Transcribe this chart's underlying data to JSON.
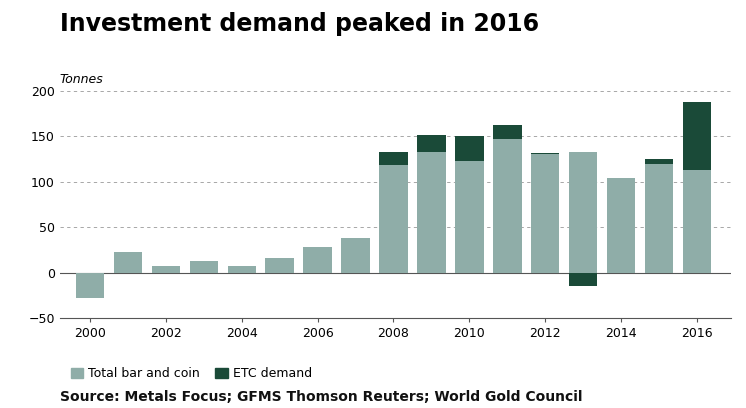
{
  "title": "Investment demand peaked in 2016",
  "ylabel": "Tonnes",
  "source": "Source: Metals Focus; GFMS Thomson Reuters; World Gold Council",
  "years": [
    2000,
    2001,
    2002,
    2003,
    2004,
    2005,
    2006,
    2007,
    2008,
    2009,
    2010,
    2011,
    2012,
    2013,
    2014,
    2015,
    2016
  ],
  "bar_coin": [
    -28,
    23,
    7,
    13,
    7,
    16,
    28,
    38,
    118,
    133,
    123,
    147,
    130,
    133,
    104,
    120,
    113
  ],
  "etc": [
    0,
    0,
    0,
    0,
    0,
    0,
    0,
    0,
    15,
    18,
    27,
    15,
    2,
    -15,
    0,
    5,
    75
  ],
  "bar_coin_color": "#8fada8",
  "etc_color": "#1a4a38",
  "ylim": [
    -50,
    210
  ],
  "yticks": [
    -50,
    0,
    50,
    100,
    150,
    200
  ],
  "xtick_years": [
    2000,
    2002,
    2004,
    2006,
    2008,
    2010,
    2012,
    2014,
    2016
  ],
  "bar_width": 0.75,
  "title_fontsize": 17,
  "ylabel_fontsize": 9,
  "tick_fontsize": 9,
  "source_fontsize": 10,
  "legend_label_coin": "Total bar and coin",
  "legend_label_etc": "ETC demand",
  "background_color": "#ffffff",
  "grid_color": "#999999"
}
